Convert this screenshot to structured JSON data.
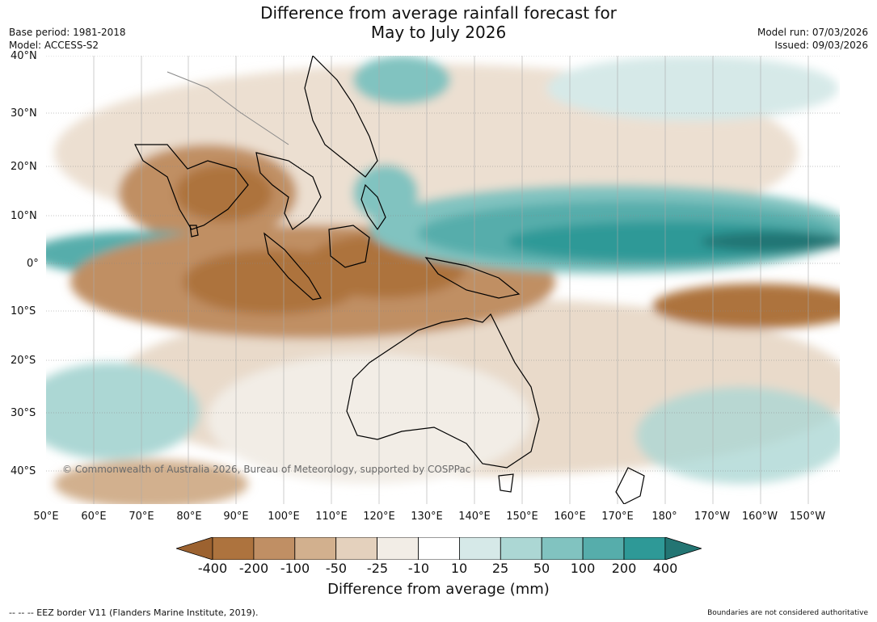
{
  "title": {
    "line1": "Difference from average rainfall forecast for",
    "line2": "May to July 2026"
  },
  "meta": {
    "base_period": "Base period: 1981-2018",
    "model": "Model: ACCESS-S2",
    "model_run": "Model run: 07/03/2026",
    "issued": "Issued: 09/03/2026"
  },
  "axes": {
    "lat_labels": [
      "40°N",
      "30°N",
      "20°N",
      "10°N",
      "0°",
      "10°S",
      "20°S",
      "30°S",
      "40°S"
    ],
    "lon_labels": [
      "50°E",
      "60°E",
      "70°E",
      "80°E",
      "90°E",
      "100°E",
      "110°E",
      "120°E",
      "130°E",
      "140°E",
      "150°E",
      "160°E",
      "170°E",
      "180°",
      "170°W",
      "160°W",
      "150°W"
    ]
  },
  "copyright": "© Commonwealth of Australia 2026, Bureau of Meteorology, supported by COSPPac",
  "legend": {
    "title": "Difference from average (mm)",
    "ticks": [
      "-400",
      "-200",
      "-100",
      "-50",
      "-25",
      "-10",
      "10",
      "25",
      "50",
      "100",
      "200",
      "400"
    ],
    "colors": [
      "#9c6230",
      "#ad733e",
      "#c08f64",
      "#d2b08e",
      "#e4d1bd",
      "#f2ede6",
      "#ffffff",
      "#d6e9e8",
      "#acd7d4",
      "#81c3c0",
      "#56adab",
      "#2e9997",
      "#237573"
    ]
  },
  "footer": {
    "eez_note": "--  --  -- EEZ border V11 (Flanders Marine Institute, 2019).",
    "disclaimer": "Boundaries are not considered authoritative"
  }
}
